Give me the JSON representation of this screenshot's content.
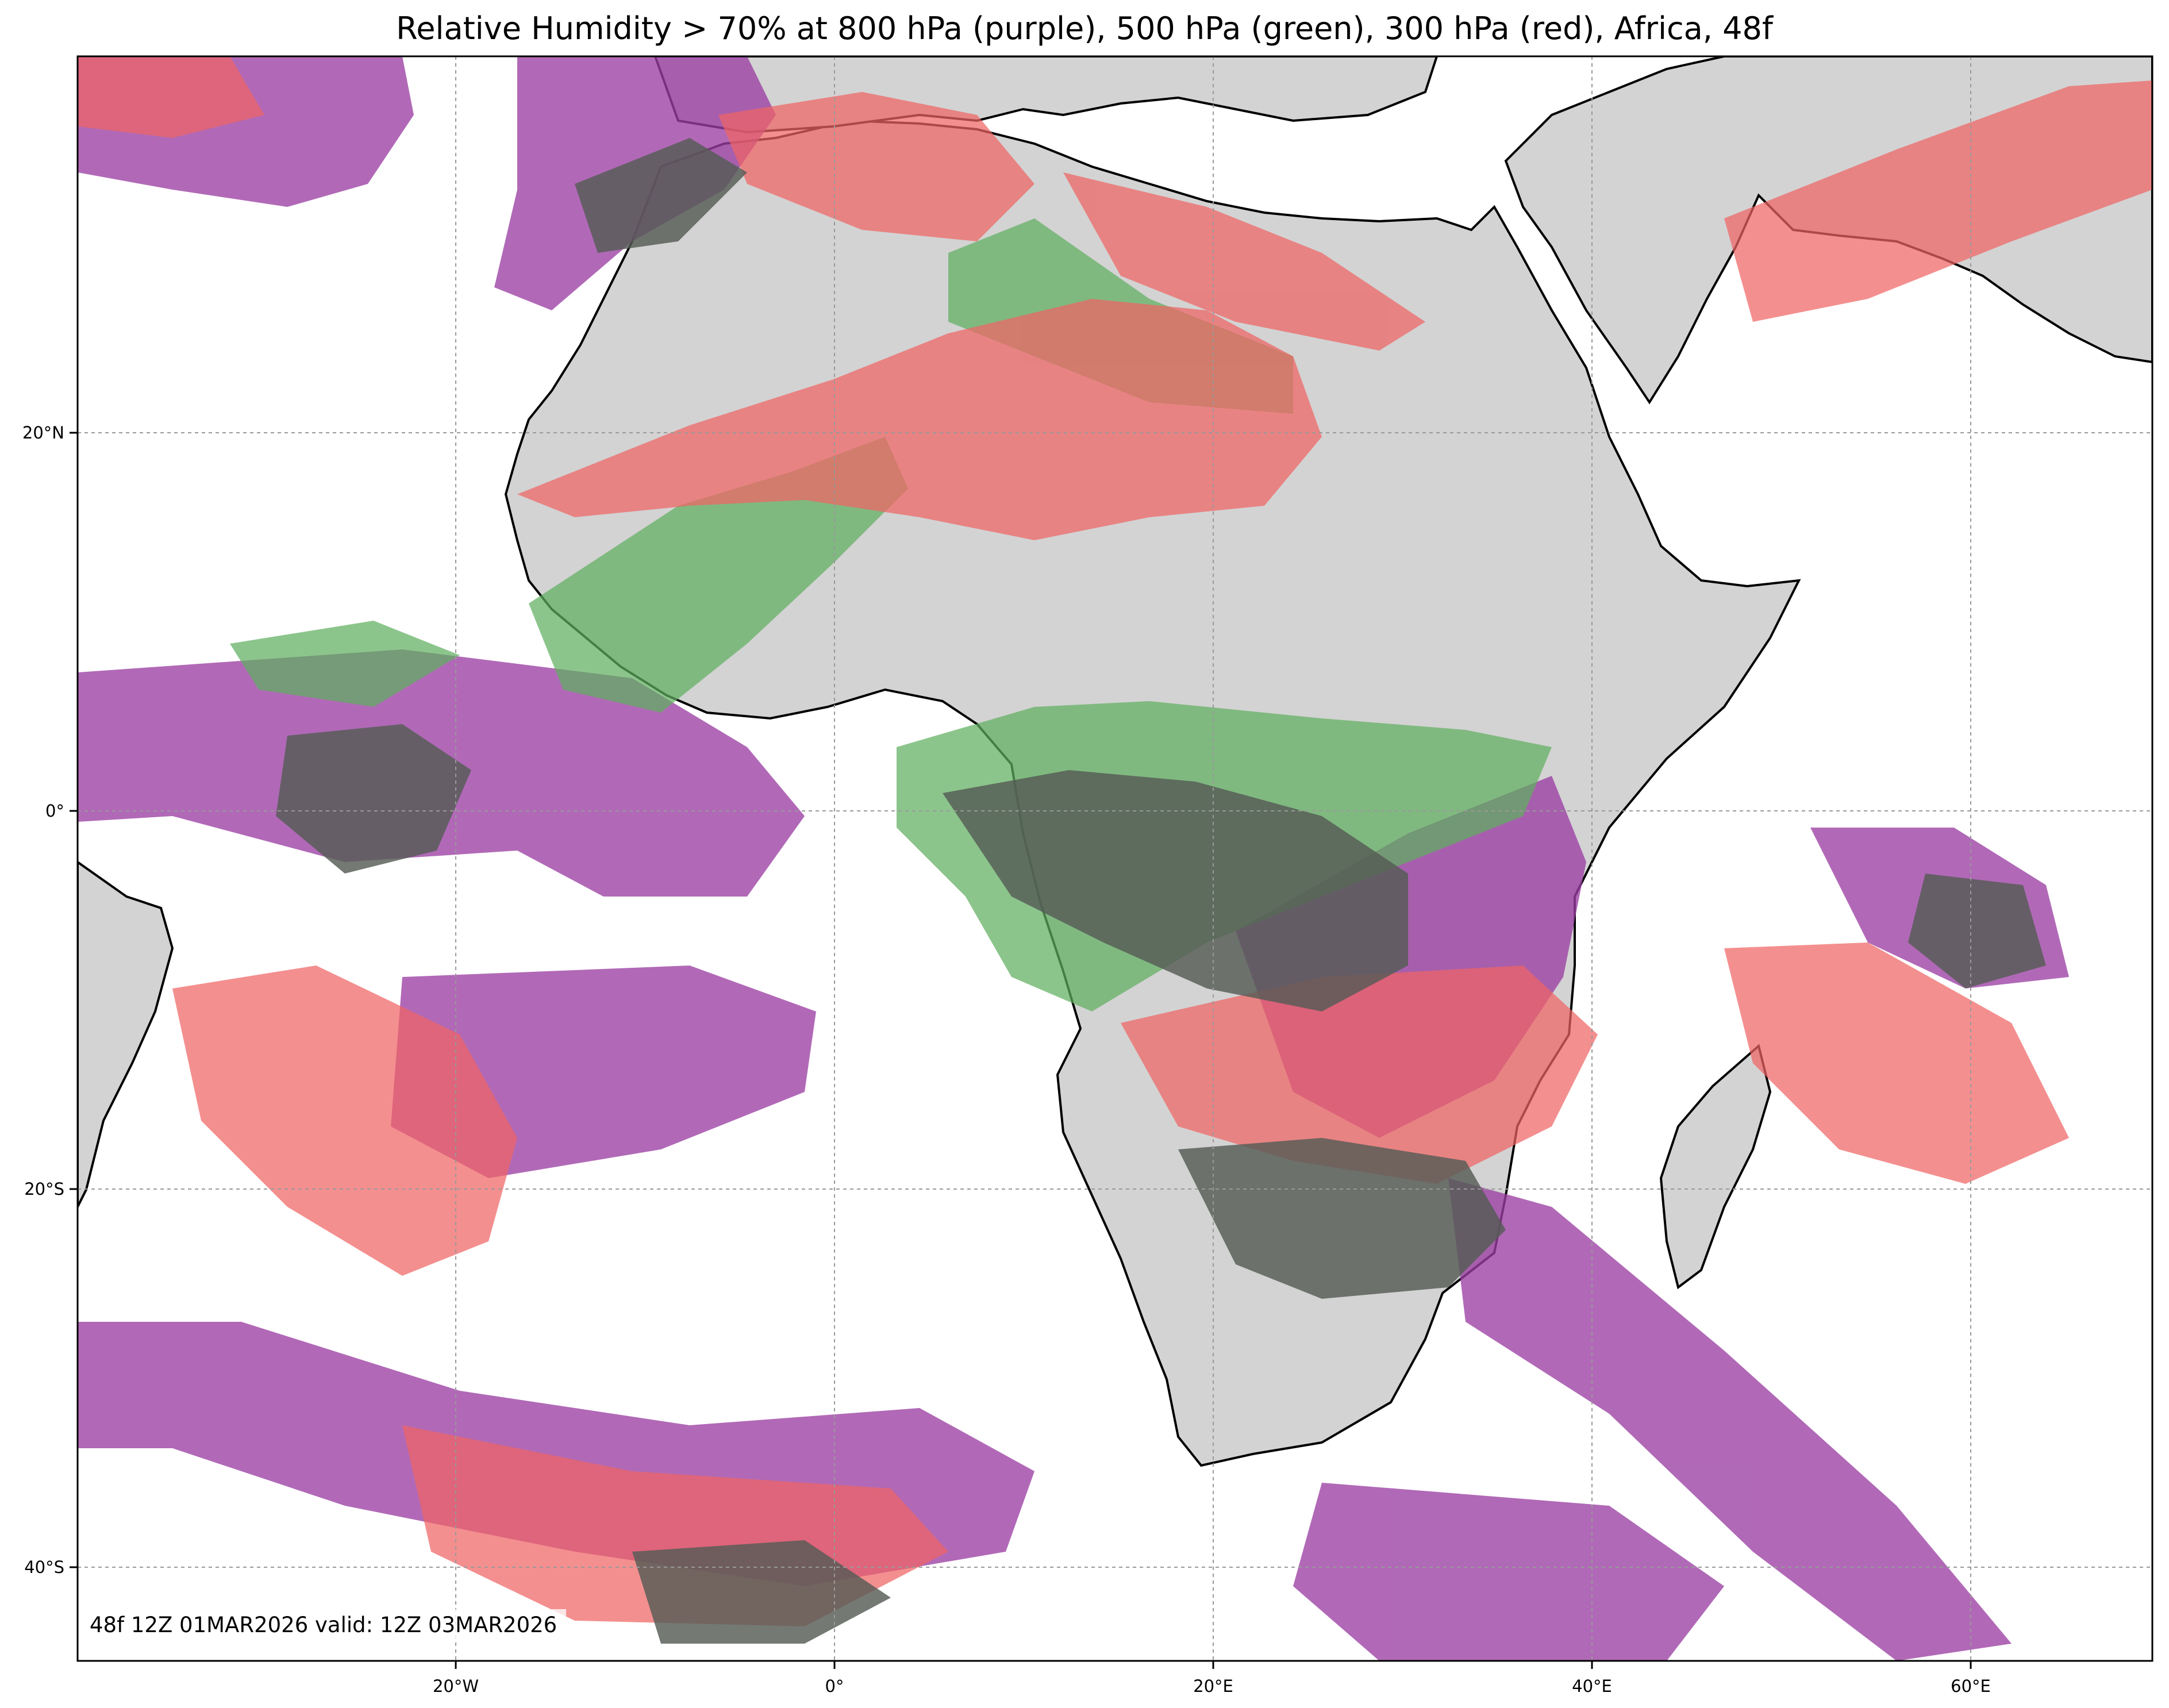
{
  "title": "Relative Humidity > 70% at 800 hPa (purple), 500 hPa (green), 300 hPa (red), Africa, 48f",
  "valid_label": "48f 12Z 01MAR2026 valid: 12Z 03MAR2026",
  "axes": {
    "lon_ticks": [
      "20°W",
      "0°",
      "20°E",
      "40°E",
      "60°E"
    ],
    "lat_ticks": [
      "20°N",
      "0°",
      "20°S",
      "40°S"
    ]
  },
  "legend_colors": {
    "land": "#d3d3d3",
    "rh_800hPa": "#9b3fa3",
    "rh_500hPa": "#5fae5f",
    "rh_300hPa": "#f06464",
    "overlap": "#555c55"
  }
}
